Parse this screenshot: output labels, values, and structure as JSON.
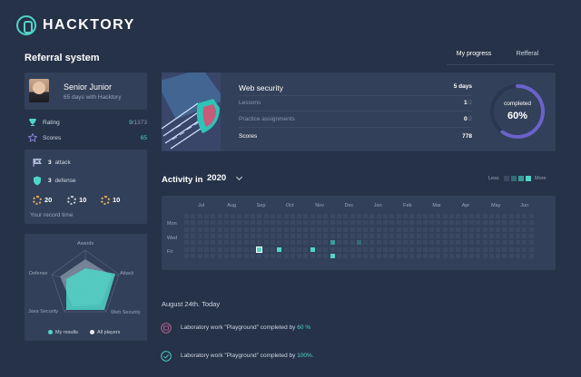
{
  "brand": {
    "name": "HACKTORY"
  },
  "page": {
    "title": "Referral system"
  },
  "tabs": [
    {
      "label": "My progress",
      "active": true
    },
    {
      "label": "Refferal",
      "active": false
    }
  ],
  "profile": {
    "name": "Senior Junior",
    "subtitle": "65 days with Hacktory",
    "rating": {
      "label": "Rating",
      "value": "9",
      "total": "/1373"
    },
    "scores": {
      "label": "Scores",
      "value": "65"
    }
  },
  "achievements": {
    "attack": {
      "count": "3",
      "label": "attack"
    },
    "defense": {
      "count": "3",
      "label": "defense"
    },
    "medals": [
      {
        "value": "20",
        "color": "#e4b45a"
      },
      {
        "value": "10",
        "color": "#c9cfd9"
      },
      {
        "value": "10",
        "color": "#e4b45a"
      }
    ],
    "record_label": "Your record time"
  },
  "radar": {
    "axes": [
      "Awards",
      "Attack",
      "Web Security",
      "Java Security",
      "Defense"
    ],
    "legend": [
      {
        "label": "My results",
        "color": "#4fd6c8"
      },
      {
        "label": "All players",
        "color": "#e8edf4"
      }
    ],
    "colors": {
      "mine": "#4fd6c8",
      "all": "#8a96ab"
    }
  },
  "course": {
    "title": "Web security",
    "duration": "5 days",
    "rows": [
      {
        "label": "Lessons",
        "value": "1",
        "total": "/2"
      },
      {
        "label": "Practice assignments",
        "value": "0",
        "total": "/2"
      },
      {
        "label": "Scores",
        "value": "778",
        "total": ""
      }
    ],
    "progress": {
      "label": "completed",
      "value_text": "60%",
      "fraction": 0.6
    }
  },
  "activity": {
    "title": "Activity in",
    "year": "2020",
    "scale": {
      "less": "Less",
      "more": "More",
      "colors": [
        "#3b4862",
        "#2f6c73",
        "#3a9c9c",
        "#4fd6c8"
      ]
    },
    "months": [
      "Jul",
      "Aug",
      "Sep",
      "Oct",
      "Nov",
      "Dec",
      "Jan",
      "Feb",
      "Mar",
      "Apr",
      "May",
      "Jun"
    ],
    "days": [
      "Mon",
      "Wed",
      "Fri"
    ],
    "weeks": 53,
    "active_cells": [
      {
        "week": 11,
        "day": 5,
        "level": 3,
        "highlight": true
      },
      {
        "week": 14,
        "day": 5,
        "level": 3
      },
      {
        "week": 19,
        "day": 5,
        "level": 3
      },
      {
        "week": 22,
        "day": 4,
        "level": 2
      },
      {
        "week": 22,
        "day": 6,
        "level": 3
      },
      {
        "week": 26,
        "day": 4,
        "level": 1
      }
    ]
  },
  "feed": {
    "date_heading": "August 24th. Today",
    "items": [
      {
        "text": "Laboratory work \"Playground\" completed by",
        "value": "60 %",
        "icon": "pending-lab-icon"
      },
      {
        "text": "Laboratory work \"Playground\" completed by",
        "value": "100%.",
        "icon": "check-icon"
      }
    ]
  }
}
